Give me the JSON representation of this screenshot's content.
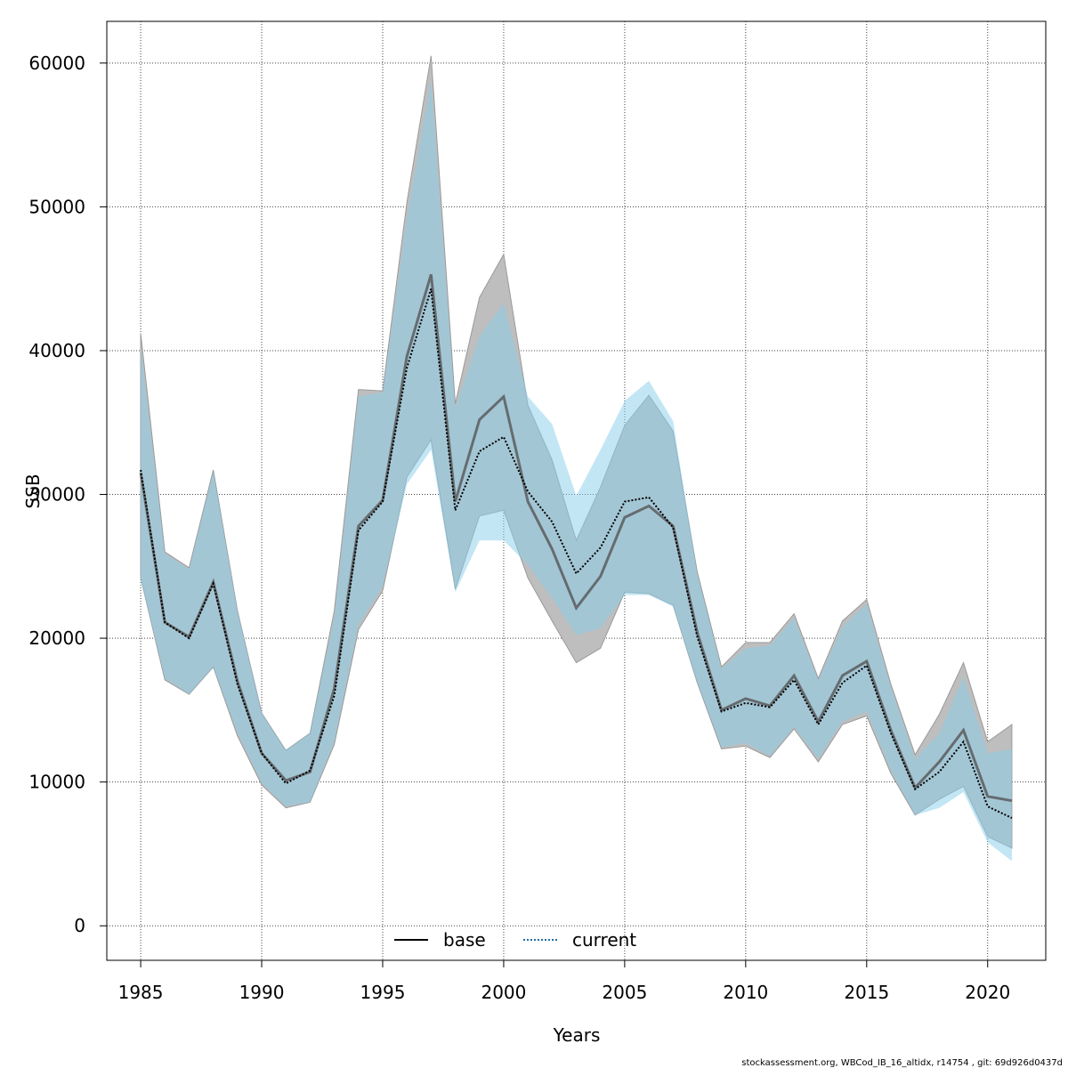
{
  "chart_data": {
    "type": "area",
    "xlabel": "Years",
    "ylabel": "SSB",
    "xlim": [
      1983.6,
      2022.4
    ],
    "ylim": [
      -2400,
      62900
    ],
    "x_ticks": [
      1985,
      1990,
      1995,
      2000,
      2005,
      2010,
      2015,
      2020
    ],
    "y_ticks": [
      0,
      10000,
      20000,
      30000,
      40000,
      50000,
      60000
    ],
    "grid": true,
    "legend_position": "bottom-center",
    "x": [
      1985,
      1986,
      1987,
      1988,
      1989,
      1990,
      1991,
      1992,
      1993,
      1994,
      1995,
      1996,
      1997,
      1998,
      1999,
      2000,
      2001,
      2002,
      2003,
      2004,
      2005,
      2006,
      2007,
      2008,
      2009,
      2010,
      2011,
      2012,
      2013,
      2014,
      2015,
      2016,
      2017,
      2018,
      2019,
      2020,
      2021
    ],
    "series": [
      {
        "name": "base",
        "line_style": "solid",
        "line_color": "#555555",
        "band_color": "#bebebe",
        "values": [
          31500,
          21100,
          20100,
          23900,
          17000,
          12000,
          10100,
          10700,
          16500,
          27800,
          29600,
          39600,
          45300,
          29500,
          35200,
          36800,
          29500,
          26200,
          22100,
          24300,
          28400,
          29200,
          27800,
          20400,
          15000,
          15800,
          15300,
          17400,
          14200,
          17400,
          18400,
          13600,
          9600,
          11400,
          13600,
          9000,
          8700
        ],
        "lower": [
          24200,
          17100,
          16100,
          18000,
          13200,
          9800,
          8200,
          8600,
          12600,
          20600,
          23300,
          31200,
          33800,
          23400,
          28500,
          28900,
          24200,
          21200,
          18300,
          19300,
          23200,
          23100,
          22300,
          16900,
          12300,
          12500,
          11700,
          13700,
          11400,
          14000,
          14600,
          10600,
          7700,
          8800,
          9700,
          6200,
          5400
        ],
        "upper": [
          41200,
          26000,
          24900,
          31700,
          21900,
          14800,
          12200,
          13400,
          21900,
          37300,
          37200,
          50300,
          60500,
          36300,
          43700,
          46700,
          36200,
          32400,
          26800,
          30500,
          34800,
          36900,
          34400,
          24600,
          18000,
          19700,
          19700,
          21700,
          17200,
          21200,
          22700,
          16800,
          11900,
          14700,
          18300,
          12800,
          14000
        ]
      },
      {
        "name": "current",
        "line_style": "dotted",
        "line_color": "#1f6fa3",
        "band_color": "#87ceeb",
        "values": [
          31700,
          21100,
          20000,
          23800,
          16800,
          12000,
          9900,
          10800,
          16000,
          27500,
          29500,
          38800,
          44300,
          28900,
          33000,
          34000,
          30200,
          28100,
          24500,
          26300,
          29500,
          29800,
          27700,
          20100,
          14900,
          15500,
          15200,
          17100,
          14000,
          16900,
          18100,
          13400,
          9500,
          10700,
          12800,
          8300,
          7500
        ],
        "lower": [
          24100,
          17200,
          16100,
          18000,
          13400,
          9900,
          8300,
          8600,
          12800,
          20900,
          23600,
          30700,
          33100,
          23200,
          26800,
          26800,
          25100,
          22800,
          20200,
          20700,
          23000,
          23000,
          22200,
          16900,
          12400,
          12700,
          11800,
          13800,
          11600,
          14200,
          14900,
          10800,
          7700,
          8200,
          9300,
          5800,
          4500
        ],
        "upper": [
          40300,
          25900,
          24800,
          31600,
          21900,
          14800,
          12200,
          13400,
          21500,
          36800,
          37100,
          49200,
          58800,
          36000,
          41000,
          43300,
          36800,
          34900,
          29900,
          33100,
          36500,
          37900,
          35100,
          24500,
          17900,
          19300,
          19500,
          21400,
          17100,
          20800,
          22400,
          16600,
          11600,
          13400,
          17300,
          12000,
          12300
        ]
      }
    ]
  },
  "footer": "stockassessment.org, WBCod_IB_16_altidx, r14754 , git: 69d926d0437d"
}
